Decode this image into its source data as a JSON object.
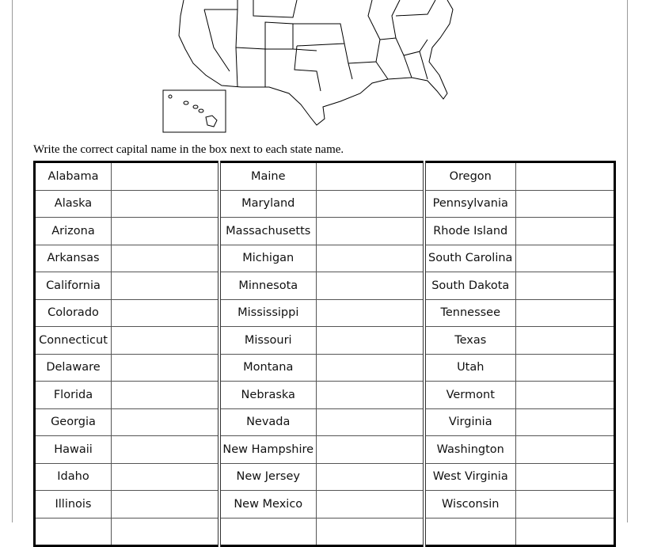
{
  "instructions": "Write the correct capital name in the box next to each state name.",
  "rows": [
    [
      "Alabama",
      "Maine",
      "Oregon"
    ],
    [
      "Alaska",
      "Maryland",
      "Pennsylvania"
    ],
    [
      "Arizona",
      "Massachusetts",
      "Rhode Island"
    ],
    [
      "Arkansas",
      "Michigan",
      "South Carolina"
    ],
    [
      "California",
      "Minnesota",
      "South Dakota"
    ],
    [
      "Colorado",
      "Mississippi",
      "Tennessee"
    ],
    [
      "Connecticut",
      "Missouri",
      "Texas"
    ],
    [
      "Delaware",
      "Montana",
      "Utah"
    ],
    [
      "Florida",
      "Nebraska",
      "Vermont"
    ],
    [
      "Georgia",
      "Nevada",
      "Virginia"
    ],
    [
      "Hawaii",
      "New Hampshire",
      "Washington"
    ],
    [
      "Idaho",
      "New Jersey",
      "West Virginia"
    ],
    [
      "Illinois",
      "New Mexico",
      "Wisconsin"
    ],
    [
      "",
      "",
      ""
    ]
  ]
}
